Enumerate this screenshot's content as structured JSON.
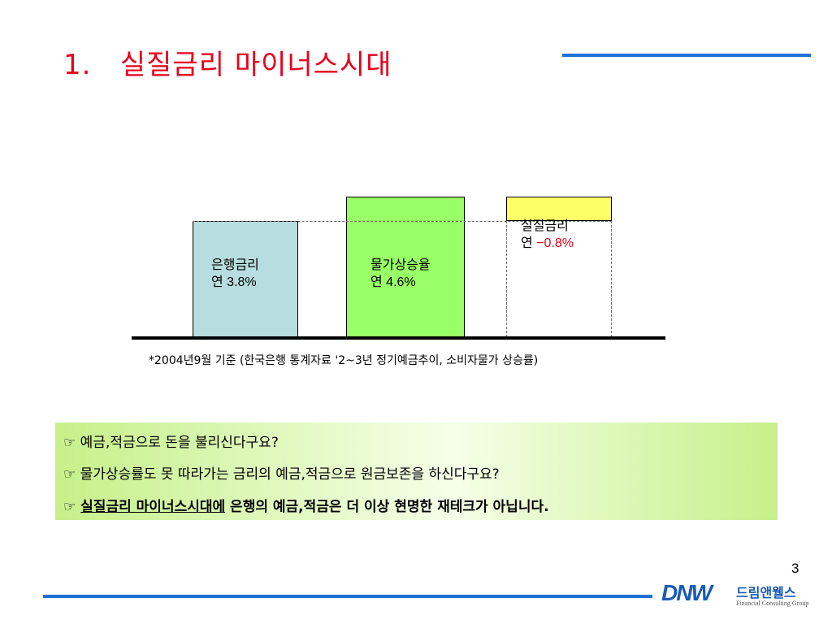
{
  "slide": {
    "title": "1.   실질금리 마이너스시대",
    "footnote": "*2004년9월 기준 (한국은행 통계자료 '2~3년 정기예금추이, 소비자물가 상승률)",
    "page_number": "3"
  },
  "chart_data": {
    "type": "bar",
    "categories": [
      "은행금리",
      "물가상승율",
      "실질금리"
    ],
    "values": [
      3.8,
      4.6,
      -0.8
    ],
    "labels": [
      {
        "line1": "은행금리",
        "prefix": "연 ",
        "value": "3.8%"
      },
      {
        "line1": "물가상승율",
        "prefix": "연 ",
        "value": "4.6%"
      },
      {
        "line1": "실질금리",
        "prefix": "연 ",
        "value": "−0.8%"
      }
    ],
    "colors": [
      "#b8dde0",
      "#99ff66",
      "#ffff66"
    ],
    "negative_color": "#e8001c"
  },
  "message_box": {
    "bullet": "☞",
    "line1": "예금,적금으로 돈을 불리신다구요?",
    "line2": "물가상승률도 못 따라가는 금리의 예금,적금으로 원금보존을 하신다구요?",
    "line3_underlined": "실질금리 마이너스시대에",
    "line3_rest": " 은행의 예금,적금은 더 이상 현명한 재테크가 아닙니다."
  },
  "logo": {
    "mark": "DNW",
    "name": "드림앤웰스",
    "tagline": "Financial Consulting Group"
  },
  "colors": {
    "title": "#e8001c",
    "accent_line": "#1f6fd6",
    "brand": "#1a5bb8"
  }
}
